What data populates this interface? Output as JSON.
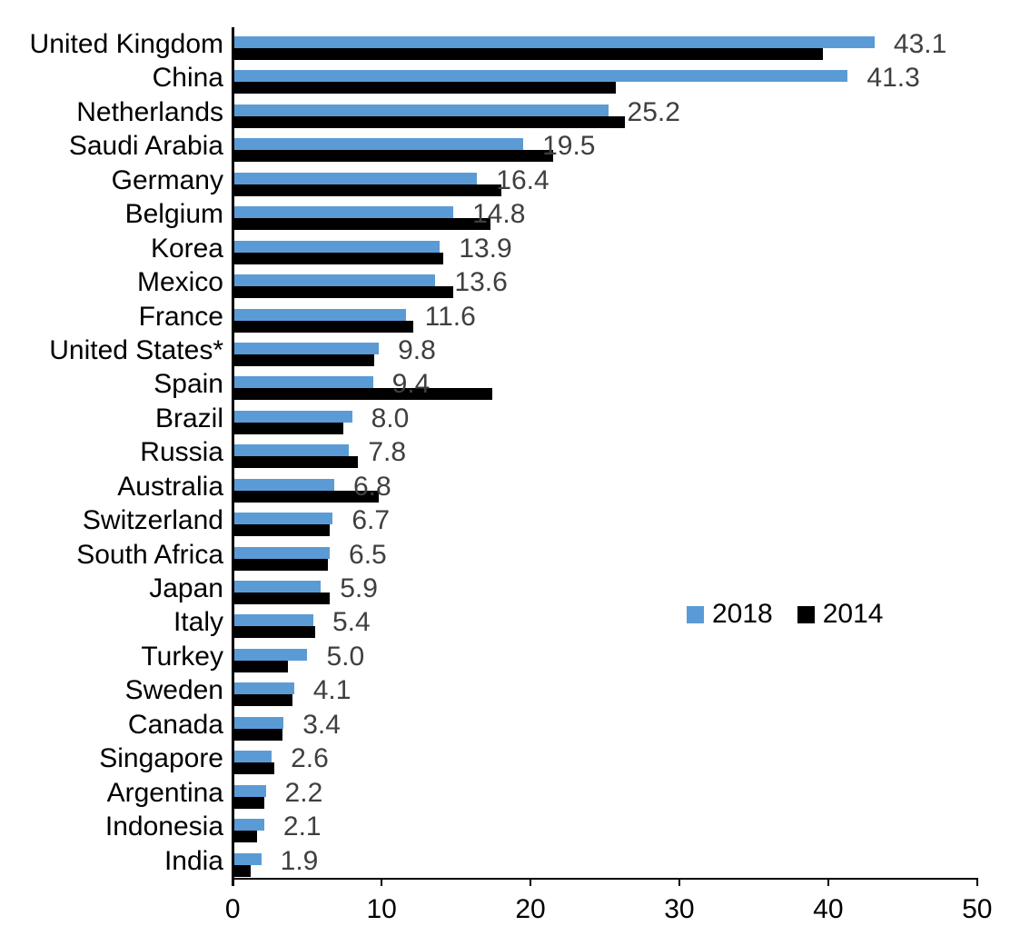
{
  "chart_data": {
    "type": "bar",
    "orientation": "horizontal",
    "title": "",
    "xlabel": "",
    "ylabel": "",
    "xlim": [
      0,
      50
    ],
    "x_ticks": [
      "0",
      "10",
      "20",
      "30",
      "40",
      "50"
    ],
    "grid": false,
    "legend_position": "middle-right",
    "categories": [
      "United Kingdom",
      "China",
      "Netherlands",
      "Saudi Arabia",
      "Germany",
      "Belgium",
      "Korea",
      "Mexico",
      "France",
      "United States*",
      "Spain",
      "Brazil",
      "Russia",
      "Australia",
      "Switzerland",
      "South Africa",
      "Japan",
      "Italy",
      "Turkey",
      "Sweden",
      "Canada",
      "Singapore",
      "Argentina",
      "Indonesia",
      "India"
    ],
    "series": [
      {
        "name": "2018",
        "color": "#5B9BD5",
        "values": [
          43.1,
          41.3,
          25.2,
          19.5,
          16.4,
          14.8,
          13.9,
          13.6,
          11.6,
          9.8,
          9.4,
          8.0,
          7.8,
          6.8,
          6.7,
          6.5,
          5.9,
          5.4,
          5.0,
          4.1,
          3.4,
          2.6,
          2.2,
          2.1,
          1.9
        ],
        "data_labels": [
          "43.1",
          "41.3",
          "25.2",
          "19.5",
          "16.4",
          "14.8",
          "13.9",
          "13.6",
          "11.6",
          "9.8",
          "9.4",
          "8.0",
          "7.8",
          "6.8",
          "6.7",
          "6.5",
          "5.9",
          "5.4",
          "5.0",
          "4.1",
          "3.4",
          "2.6",
          "2.2",
          "2.1",
          "1.9"
        ]
      },
      {
        "name": "2014",
        "color": "#000000",
        "values_estimated": true,
        "values": [
          39.6,
          25.7,
          26.3,
          21.5,
          18.0,
          17.3,
          14.1,
          14.8,
          12.1,
          9.5,
          17.4,
          7.4,
          8.4,
          9.8,
          6.5,
          6.4,
          6.5,
          5.5,
          3.7,
          4.0,
          3.3,
          2.8,
          2.1,
          1.6,
          1.2
        ]
      }
    ],
    "data_label_color": "#3F3F3F",
    "axis_color": "#000000"
  },
  "legend": {
    "items": [
      {
        "label": "2018",
        "color": "#5B9BD5"
      },
      {
        "label": "2014",
        "color": "#000000"
      }
    ]
  }
}
